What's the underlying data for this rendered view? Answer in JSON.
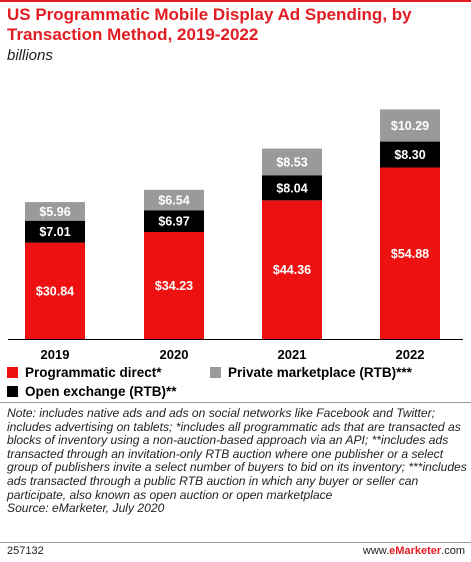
{
  "header": {
    "title": "US Programmatic Mobile Display Ad Spending, by Transaction Method, 2019-2022",
    "subtitle": "billions"
  },
  "colors": {
    "accent": "#e21c23",
    "programmatic_direct": "#ee1111",
    "open_exchange": "#000000",
    "private_marketplace": "#9a9a9a"
  },
  "chart_data": {
    "type": "bar",
    "stacked": true,
    "categories": [
      "2019",
      "2020",
      "2021",
      "2022"
    ],
    "series": [
      {
        "name": "Programmatic direct*",
        "values": [
          30.84,
          34.23,
          44.36,
          54.88
        ],
        "labels": [
          "$30.84",
          "$34.23",
          "$44.36",
          "$54.88"
        ],
        "color": "#ee1111"
      },
      {
        "name": "Open exchange (RTB)**",
        "values": [
          7.01,
          6.97,
          8.04,
          8.3
        ],
        "labels": [
          "$7.01",
          "$6.97",
          "$8.04",
          "$8.30"
        ],
        "color": "#000000"
      },
      {
        "name": "Private marketplace (RTB)***",
        "values": [
          5.96,
          6.54,
          8.53,
          10.29
        ],
        "labels": [
          "$5.96",
          "$6.54",
          "$8.53",
          "$10.29"
        ],
        "color": "#9a9a9a"
      }
    ],
    "ylim": [
      0,
      80
    ],
    "grid": false,
    "legend": "bottom"
  },
  "legend": {
    "items": [
      {
        "label": "Programmatic direct*",
        "color": "#ee1111"
      },
      {
        "label": "Private marketplace (RTB)***",
        "color": "#9a9a9a"
      },
      {
        "label": "Open exchange (RTB)**",
        "color": "#000000"
      }
    ]
  },
  "note": "Note: includes native ads and ads on social networks like Facebook and Twitter; includes advertising on tablets; *includes all programmatic ads that are transacted as blocks of inventory using a non-auction-based approach via an API; **includes ads transacted through an invitation-only RTB auction where one publisher or a select group of publishers invite a select number of buyers to bid on its inventory; ***includes ads transacted through a public RTB auction in which any buyer or seller can participate, also known as open auction or open marketplace",
  "source": "Source: eMarketer, July 2020",
  "footer": {
    "chart_id": "257132",
    "brand_prefix": "www.",
    "brand_name": "eMarketer",
    "brand_suffix": ".com"
  }
}
